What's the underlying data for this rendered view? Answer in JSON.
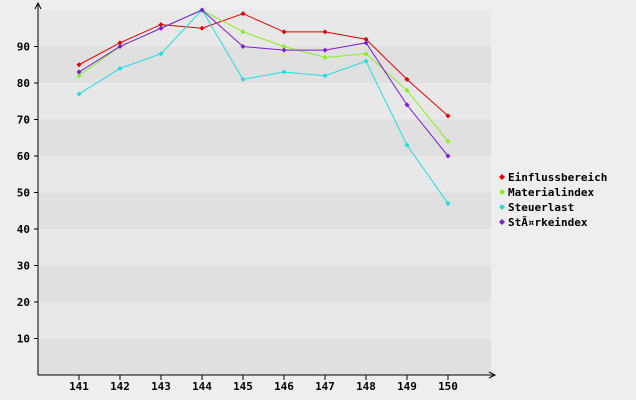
{
  "chart_data": {
    "type": "line",
    "x": [
      141,
      142,
      143,
      144,
      145,
      146,
      147,
      148,
      149,
      150
    ],
    "x_tick_labels": [
      "141",
      "142",
      "143",
      "144",
      "145",
      "146",
      "147",
      "148",
      "149",
      "150"
    ],
    "y_ticks": [
      10,
      20,
      30,
      40,
      50,
      60,
      70,
      80,
      90
    ],
    "ylim": [
      0,
      100
    ],
    "grid": true,
    "legend_position": "right",
    "series": [
      {
        "name": "Einflussbereich",
        "color": "#e00000",
        "values": [
          85,
          91,
          96,
          95,
          99,
          94,
          94,
          92,
          81,
          71
        ]
      },
      {
        "name": "Materialindex",
        "color": "#88ee22",
        "values": [
          82,
          90,
          95,
          100,
          94,
          90,
          87,
          88,
          78,
          64
        ]
      },
      {
        "name": "Steuerlast",
        "color": "#22dddd",
        "values": [
          77,
          84,
          88,
          100,
          81,
          83,
          82,
          86,
          63,
          47
        ]
      },
      {
        "name": "StÃ¤rkeindex",
        "color": "#7a1fd6",
        "values": [
          83,
          90,
          95,
          100,
          90,
          89,
          89,
          91,
          74,
          60
        ]
      }
    ]
  }
}
